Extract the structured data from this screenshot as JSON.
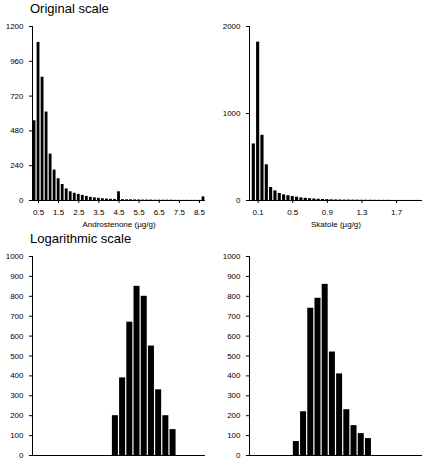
{
  "chart_data": [
    {
      "type": "histogram",
      "title": "Original scale",
      "xlabel": "Androstenone (µg/g)",
      "color": "#000000",
      "bins": [
        0.2,
        0.4,
        0.6,
        0.8,
        1.0,
        1.2,
        1.4,
        1.6,
        1.8,
        2.0,
        2.2,
        2.4,
        2.6,
        2.8,
        3.0,
        3.2,
        3.4,
        3.6,
        3.8,
        4.0,
        4.2,
        4.4,
        4.6,
        4.8,
        5.0,
        5.2,
        5.4,
        5.6,
        5.8,
        6.0,
        6.2,
        6.4,
        6.6,
        6.8,
        7.0,
        7.2,
        7.4,
        7.6,
        7.8,
        8.0,
        8.2,
        8.4,
        8.6,
        8.8
      ],
      "values": [
        550,
        1090,
        850,
        610,
        320,
        210,
        150,
        110,
        80,
        60,
        50,
        42,
        35,
        28,
        22,
        18,
        15,
        12,
        10,
        8,
        7,
        60,
        6,
        5,
        5,
        4,
        4,
        3,
        3,
        3,
        2,
        2,
        2,
        2,
        2,
        1,
        1,
        1,
        1,
        1,
        1,
        1,
        25
      ],
      "xlim": [
        0.2,
        8.8
      ],
      "xticks": [
        0.5,
        1.5,
        2.5,
        3.5,
        4.5,
        5.5,
        6.5,
        7.5,
        8.5
      ],
      "ylim": [
        0,
        1200
      ],
      "yticks": [
        0,
        240,
        480,
        720,
        960,
        1200
      ]
    },
    {
      "type": "histogram",
      "xlabel": "Skatole (µg/g)",
      "color": "#000000",
      "bins": [
        0.025,
        0.075,
        0.125,
        0.175,
        0.225,
        0.275,
        0.325,
        0.375,
        0.425,
        0.475,
        0.525,
        0.575,
        0.625,
        0.675,
        0.725,
        0.775,
        0.825,
        0.875,
        0.925,
        0.975,
        1.025,
        1.075,
        1.125,
        1.175,
        1.225,
        1.275,
        1.325,
        1.375,
        1.425,
        1.475,
        1.525,
        1.575,
        1.625,
        1.675,
        1.725,
        1.775,
        1.825,
        1.875,
        1.925,
        1.975
      ],
      "values": [
        650,
        1820,
        750,
        410,
        150,
        110,
        80,
        65,
        55,
        45,
        38,
        30,
        25,
        20,
        17,
        14,
        12,
        10,
        8,
        7,
        6,
        5,
        5,
        4,
        4,
        3,
        3,
        3,
        2,
        2,
        2,
        2,
        1,
        1,
        1,
        1,
        1,
        1,
        1
      ],
      "xlim": [
        0,
        2.0
      ],
      "xticks": [
        0.1,
        0.5,
        0.9,
        1.3,
        1.7
      ],
      "ylim": [
        0,
        2000
      ],
      "yticks": [
        0,
        1000,
        2000
      ]
    },
    {
      "type": "histogram",
      "title": "Logarithmic scale",
      "color": "#000000",
      "tick_labels": "y",
      "bins": [
        -0.25,
        0,
        0.25,
        0.5,
        0.75,
        1.0,
        1.25,
        1.5,
        1.75,
        2.0
      ],
      "values": [
        200,
        390,
        670,
        850,
        800,
        550,
        330,
        200,
        130
      ],
      "xlim": [
        -3,
        3
      ],
      "ylim": [
        0,
        1000
      ],
      "yticks": [
        0,
        100,
        200,
        300,
        400,
        500,
        600,
        700,
        800,
        900,
        1000
      ]
    },
    {
      "type": "histogram",
      "color": "#000000",
      "tick_labels": "y",
      "bins": [
        -1.5,
        -1.25,
        -1.0,
        -0.75,
        -0.5,
        -0.25,
        0,
        0.25,
        0.5,
        0.75,
        1.0,
        1.25
      ],
      "values": [
        70,
        220,
        740,
        790,
        860,
        520,
        410,
        230,
        150,
        110,
        85
      ],
      "xlim": [
        -3,
        3
      ],
      "ylim": [
        0,
        1000
      ],
      "yticks": [
        0,
        100,
        200,
        300,
        400,
        500,
        600,
        700,
        800,
        900,
        1000
      ]
    }
  ]
}
